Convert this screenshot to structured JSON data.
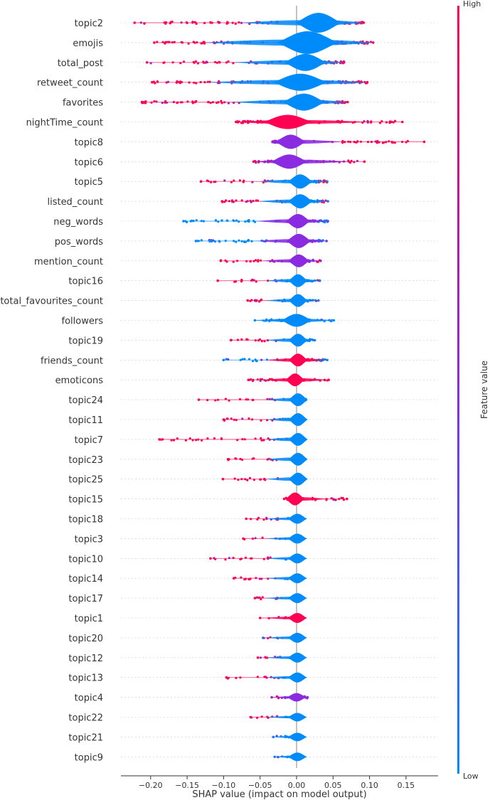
{
  "chart_data": {
    "type": "violin",
    "title": "",
    "xlabel": "SHAP value (impact on model output)",
    "ylabel": "",
    "xlim": [
      -0.24,
      0.19
    ],
    "xticks": [
      -0.2,
      -0.15,
      -0.1,
      -0.05,
      0.0,
      0.05,
      0.1,
      0.15
    ],
    "xtick_labels": [
      "−0.20",
      "−0.15",
      "−0.10",
      "−0.05",
      "0.00",
      "0.05",
      "0.10",
      "0.15"
    ],
    "colorbar": {
      "label": "Feature value",
      "high": "High",
      "low": "Low"
    },
    "colors": {
      "high": "#ff0052",
      "mid": "#8a2be2",
      "low": "#008bfb",
      "axis": "#333333",
      "zero_line": "#999999"
    },
    "features": [
      {
        "name": "topic2",
        "min": -0.222,
        "max": 0.092,
        "spread": 0.015,
        "body_color": "low",
        "body_width": 14,
        "mode": 0.03,
        "tail_color": "high"
      },
      {
        "name": "emojis",
        "min": -0.195,
        "max": 0.105,
        "spread": 0.02,
        "body_color": "low",
        "body_width": 16,
        "mode": 0.015,
        "tail_color": "high"
      },
      {
        "name": "total_post",
        "min": -0.205,
        "max": 0.065,
        "spread": 0.014,
        "body_color": "low",
        "body_width": 12,
        "mode": 0.012,
        "tail_color": "high"
      },
      {
        "name": "retweet_count",
        "min": -0.198,
        "max": 0.097,
        "spread": 0.018,
        "body_color": "low",
        "body_width": 12,
        "mode": 0.005,
        "tail_color": "high"
      },
      {
        "name": "favorites",
        "min": -0.212,
        "max": 0.07,
        "spread": 0.014,
        "body_color": "low",
        "body_width": 12,
        "mode": 0.01,
        "tail_color": "high"
      },
      {
        "name": "nightTime_count",
        "min": -0.083,
        "max": 0.145,
        "spread": 0.016,
        "body_color": "high",
        "body_width": 10,
        "mode": -0.012,
        "tail_color": "high"
      },
      {
        "name": "topic8",
        "min": -0.033,
        "max": 0.175,
        "spread": 0.01,
        "body_color": "mid",
        "body_width": 10,
        "mode": -0.008,
        "tail_color": "high"
      },
      {
        "name": "topic6",
        "min": -0.059,
        "max": 0.093,
        "spread": 0.012,
        "body_color": "mid",
        "body_width": 10,
        "mode": -0.01,
        "tail_color": "high"
      },
      {
        "name": "topic5",
        "min": -0.131,
        "max": 0.042,
        "spread": 0.008,
        "body_color": "low",
        "body_width": 10,
        "mode": 0.005,
        "tail_color": "high"
      },
      {
        "name": "listed_count",
        "min": -0.102,
        "max": 0.043,
        "spread": 0.008,
        "body_color": "low",
        "body_width": 10,
        "mode": 0.005,
        "tail_color": "high"
      },
      {
        "name": "neg_words",
        "min": -0.155,
        "max": 0.043,
        "spread": 0.008,
        "body_color": "mid",
        "body_width": 10,
        "mode": 0.002,
        "tail_color": "low"
      },
      {
        "name": "pos_words",
        "min": -0.138,
        "max": 0.041,
        "spread": 0.008,
        "body_color": "mid",
        "body_width": 10,
        "mode": 0.003,
        "tail_color": "low"
      },
      {
        "name": "mention_count",
        "min": -0.104,
        "max": 0.033,
        "spread": 0.007,
        "body_color": "mid",
        "body_width": 9,
        "mode": 0.003,
        "tail_color": "high"
      },
      {
        "name": "topic16",
        "min": -0.108,
        "max": 0.032,
        "spread": 0.006,
        "body_color": "low",
        "body_width": 9,
        "mode": 0.002,
        "tail_color": "high"
      },
      {
        "name": "total_favourites_count",
        "min": -0.067,
        "max": 0.03,
        "spread": 0.006,
        "body_color": "low",
        "body_width": 9,
        "mode": 0.002,
        "tail_color": "high"
      },
      {
        "name": "followers",
        "min": -0.057,
        "max": 0.051,
        "spread": 0.01,
        "body_color": "low",
        "body_width": 9,
        "mode": 0.0,
        "tail_color": "low"
      },
      {
        "name": "topic19",
        "min": -0.09,
        "max": 0.025,
        "spread": 0.005,
        "body_color": "low",
        "body_width": 9,
        "mode": 0.002,
        "tail_color": "high"
      },
      {
        "name": "friends_count",
        "min": -0.1,
        "max": 0.042,
        "spread": 0.006,
        "body_color": "high",
        "body_width": 9,
        "mode": 0.002,
        "tail_color": "low"
      },
      {
        "name": "emoticons",
        "min": -0.066,
        "max": 0.044,
        "spread": 0.005,
        "body_color": "high",
        "body_width": 9,
        "mode": -0.002,
        "tail_color": "high"
      },
      {
        "name": "topic24",
        "min": -0.134,
        "max": 0.013,
        "spread": 0.004,
        "body_color": "low",
        "body_width": 9,
        "mode": 0.002,
        "tail_color": "high"
      },
      {
        "name": "topic11",
        "min": -0.1,
        "max": 0.01,
        "spread": 0.004,
        "body_color": "low",
        "body_width": 9,
        "mode": 0.002,
        "tail_color": "high"
      },
      {
        "name": "topic7",
        "min": -0.188,
        "max": 0.01,
        "spread": 0.004,
        "body_color": "low",
        "body_width": 9,
        "mode": 0.002,
        "tail_color": "high"
      },
      {
        "name": "topic23",
        "min": -0.094,
        "max": 0.008,
        "spread": 0.004,
        "body_color": "low",
        "body_width": 9,
        "mode": 0.002,
        "tail_color": "high"
      },
      {
        "name": "topic25",
        "min": -0.101,
        "max": 0.008,
        "spread": 0.004,
        "body_color": "low",
        "body_width": 9,
        "mode": 0.002,
        "tail_color": "high"
      },
      {
        "name": "topic15",
        "min": -0.017,
        "max": 0.069,
        "spread": 0.005,
        "body_color": "high",
        "body_width": 9,
        "mode": -0.002,
        "tail_color": "high"
      },
      {
        "name": "topic18",
        "min": -0.069,
        "max": 0.008,
        "spread": 0.003,
        "body_color": "low",
        "body_width": 7,
        "mode": 0.001,
        "tail_color": "high"
      },
      {
        "name": "topic3",
        "min": -0.073,
        "max": 0.005,
        "spread": 0.003,
        "body_color": "low",
        "body_width": 7,
        "mode": 0.001,
        "tail_color": "high"
      },
      {
        "name": "topic10",
        "min": -0.118,
        "max": 0.007,
        "spread": 0.003,
        "body_color": "low",
        "body_width": 7,
        "mode": 0.001,
        "tail_color": "high"
      },
      {
        "name": "topic14",
        "min": -0.086,
        "max": 0.006,
        "spread": 0.003,
        "body_color": "low",
        "body_width": 7,
        "mode": 0.001,
        "tail_color": "high"
      },
      {
        "name": "topic17",
        "min": -0.057,
        "max": 0.005,
        "spread": 0.003,
        "body_color": "low",
        "body_width": 7,
        "mode": 0.001,
        "tail_color": "high"
      },
      {
        "name": "topic1",
        "min": -0.05,
        "max": 0.007,
        "spread": 0.003,
        "body_color": "high",
        "body_width": 7,
        "mode": 0.001,
        "tail_color": "high"
      },
      {
        "name": "topic20",
        "min": -0.046,
        "max": 0.004,
        "spread": 0.002,
        "body_color": "low",
        "body_width": 7,
        "mode": 0.001,
        "tail_color": "high"
      },
      {
        "name": "topic12",
        "min": -0.053,
        "max": 0.004,
        "spread": 0.002,
        "body_color": "low",
        "body_width": 7,
        "mode": 0.001,
        "tail_color": "high"
      },
      {
        "name": "topic13",
        "min": -0.096,
        "max": 0.004,
        "spread": 0.002,
        "body_color": "low",
        "body_width": 7,
        "mode": 0.001,
        "tail_color": "high"
      },
      {
        "name": "topic4",
        "min": -0.034,
        "max": 0.015,
        "spread": 0.002,
        "body_color": "mid",
        "body_width": 6,
        "mode": 0.0,
        "tail_color": "high"
      },
      {
        "name": "topic22",
        "min": -0.063,
        "max": 0.003,
        "spread": 0.002,
        "body_color": "low",
        "body_width": 6,
        "mode": 0.001,
        "tail_color": "high"
      },
      {
        "name": "topic21",
        "min": -0.032,
        "max": 0.003,
        "spread": 0.002,
        "body_color": "low",
        "body_width": 6,
        "mode": 0.001,
        "tail_color": "mid"
      },
      {
        "name": "topic9",
        "min": -0.03,
        "max": 0.003,
        "spread": 0.002,
        "body_color": "low",
        "body_width": 6,
        "mode": 0.001,
        "tail_color": "mid"
      }
    ]
  }
}
